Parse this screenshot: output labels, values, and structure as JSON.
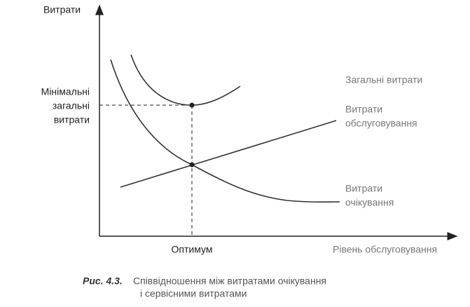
{
  "axes": {
    "y_label": "Витрати",
    "x_label": "Рівень обслуговування"
  },
  "labels": {
    "minimum": [
      "Мінімальні",
      "загальні",
      "витрати"
    ],
    "total": "Загальні витрати",
    "service": [
      "Витрати",
      "обслуговування"
    ],
    "waiting": [
      "Витрати",
      "очікування"
    ],
    "optimum": "Оптимум"
  },
  "caption": {
    "number": "Рис. 4.3.",
    "text": [
      "Співвідношення між витратами очікування",
      "і сервісними витратами"
    ]
  }
}
